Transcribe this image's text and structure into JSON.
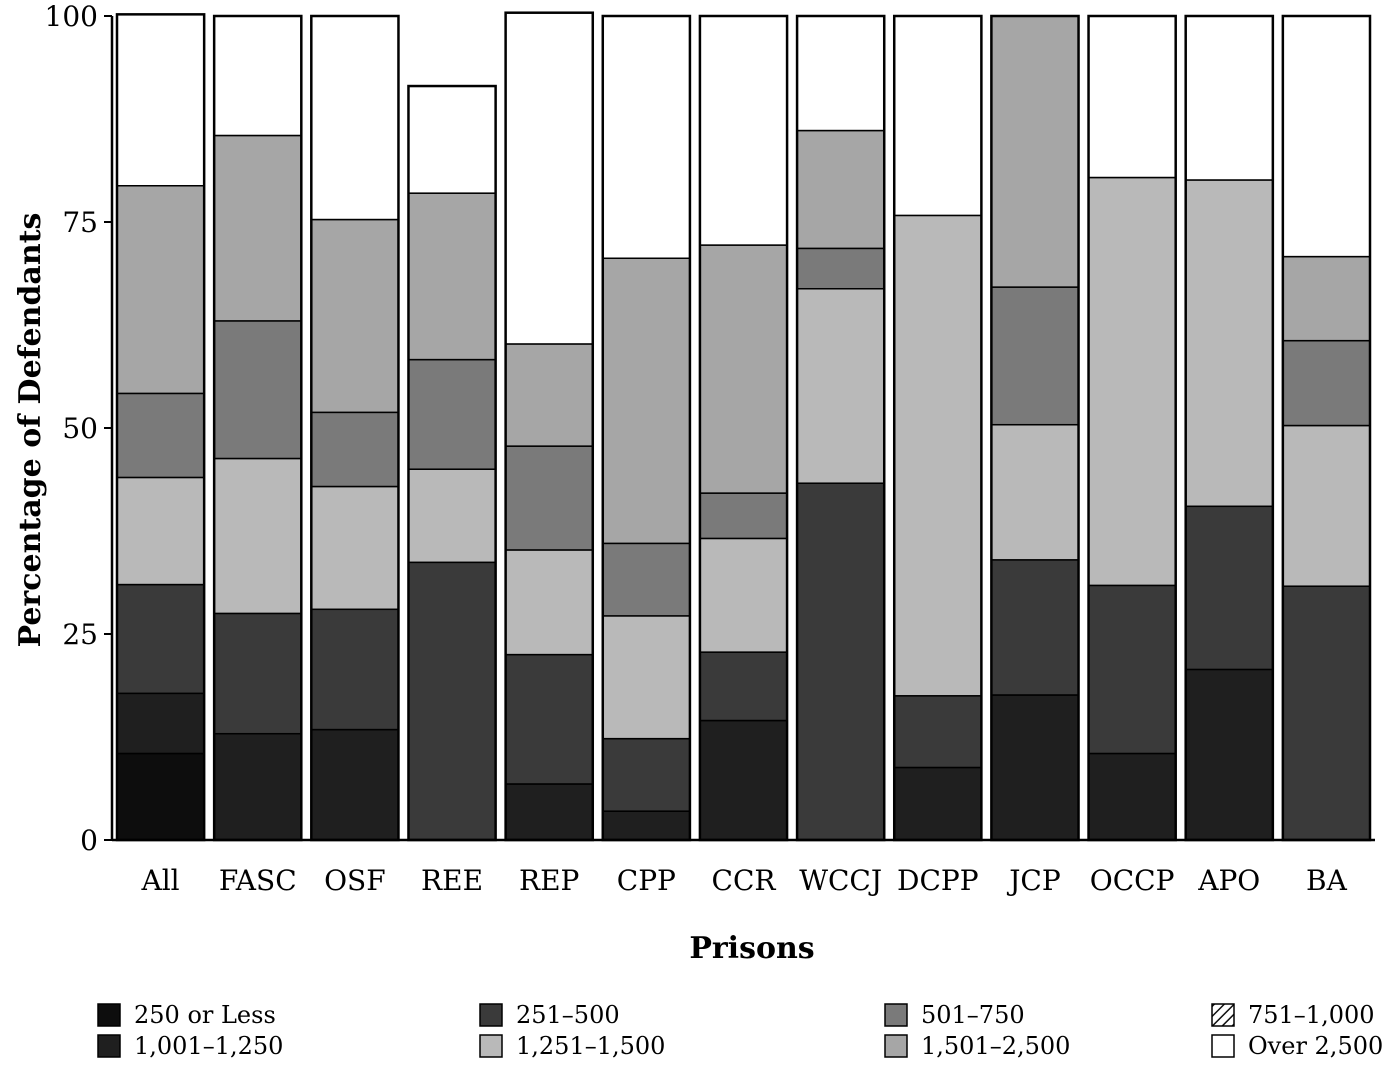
{
  "chart_data": {
    "type": "bar",
    "stacked": true,
    "title": "",
    "xlabel": "Prisons",
    "ylabel": "Percentage of Defendants",
    "ylim": [
      0,
      100
    ],
    "yticks": [
      0,
      25,
      50,
      75,
      100
    ],
    "grid": false,
    "legend_position": "bottom",
    "categories": [
      "All",
      "FASC",
      "OSF",
      "REE",
      "REP",
      "CPP",
      "CCR",
      "WCCJ",
      "DCPP",
      "JCP",
      "OCCP",
      "APO",
      "BA"
    ],
    "series": [
      {
        "name": "250 or Less",
        "values": [
          10.5,
          0,
          0,
          0,
          0,
          0,
          0,
          0,
          0,
          0,
          0,
          0,
          0
        ]
      },
      {
        "name": "1,001–1,250",
        "values": [
          7.3,
          12.9,
          13.4,
          0,
          6.8,
          3.5,
          14.5,
          0,
          8.8,
          17.6,
          10.5,
          20.7,
          0
        ]
      },
      {
        "name": "251–500",
        "values": [
          13.2,
          14.6,
          14.6,
          33.7,
          15.7,
          8.8,
          8.3,
          43.3,
          8.7,
          16.4,
          20.4,
          19.8,
          30.8
        ]
      },
      {
        "name": "1,251–1,500",
        "values": [
          13,
          18.8,
          14.9,
          11.3,
          12.7,
          14.9,
          13.8,
          23.6,
          58.3,
          16.4,
          49.5,
          39.6,
          19.5
        ]
      },
      {
        "name": "501–750",
        "values": [
          10.2,
          16.7,
          9,
          13.3,
          12.6,
          8.8,
          5.5,
          4.9,
          0,
          16.7,
          0,
          0,
          10.3
        ]
      },
      {
        "name": "1,501–2,500",
        "values": [
          25.2,
          22.5,
          23.4,
          20.2,
          12.4,
          34.6,
          30.1,
          14.3,
          0,
          32.9,
          0,
          0,
          10.2
        ]
      },
      {
        "name": "751–1,000",
        "values": [
          0,
          0,
          0,
          0,
          0,
          0,
          0,
          0,
          0,
          0,
          0,
          0,
          0
        ]
      },
      {
        "name": "Over 2,500",
        "values": [
          20.8,
          14.5,
          24.7,
          13,
          40.2,
          29.4,
          27.8,
          13.9,
          24.2,
          0,
          19.6,
          19.9,
          29.2
        ]
      }
    ],
    "legend": [
      [
        "250 or Less",
        "251–500",
        "501–750",
        "751–1,000"
      ],
      [
        "1,001–1,250",
        "1,251–1,500",
        "1,501–2,500",
        "Over 2,500"
      ]
    ],
    "colors": {
      "250 or Less": "#0d0d0d",
      "1,001–1,250": "#1f1f1f",
      "251–500": "#3a3a3a",
      "1,251–1,500": "#b9b9b9",
      "501–750": "#7a7a7a",
      "1,501–2,500": "#a6a6a6",
      "751–1,000": "hatch",
      "Over 2,500": "#ffffff"
    }
  }
}
